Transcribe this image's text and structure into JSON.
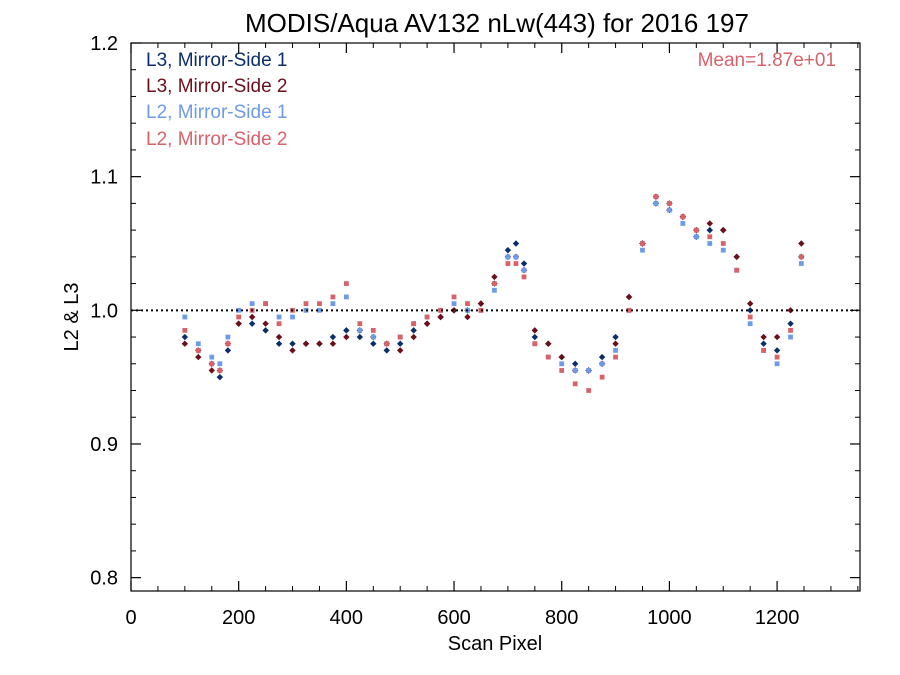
{
  "chart_data": {
    "type": "scatter",
    "title": "MODIS/Aqua AV132 nLw(443) for 2016 197",
    "xlabel": "Scan Pixel",
    "ylabel": "L2 & L3",
    "xlim": [
      0,
      1354
    ],
    "ylim": [
      0.79,
      1.2
    ],
    "x_ticks": [
      0,
      200,
      400,
      600,
      800,
      1000,
      1200
    ],
    "y_ticks": [
      0.8,
      0.9,
      1.0,
      1.1,
      1.2
    ],
    "x_tick_labels": [
      "0",
      "200",
      "400",
      "600",
      "800",
      "1000",
      "1200"
    ],
    "y_tick_labels": [
      "0.8",
      "0.9",
      "1.0",
      "1.1",
      "1.2"
    ],
    "reference_line": {
      "y": 1.0,
      "style": "dotted"
    },
    "annotation": "Mean=1.87e+01",
    "legend_placement": "top-left",
    "series": [
      {
        "name": "L3, Mirror-Side 1",
        "color": "#0b2e6b",
        "marker": "diamond",
        "x": [
          100,
          125,
          150,
          165,
          180,
          200,
          225,
          250,
          275,
          300,
          325,
          350,
          375,
          400,
          425,
          450,
          475,
          500,
          525,
          550,
          575,
          600,
          625,
          650,
          675,
          700,
          715,
          730,
          750,
          775,
          800,
          825,
          850,
          875,
          900,
          925,
          950,
          975,
          1000,
          1025,
          1050,
          1075,
          1100,
          1125,
          1150,
          1175,
          1200,
          1225,
          1245
        ],
        "y": [
          0.98,
          0.97,
          0.96,
          0.95,
          0.97,
          0.99,
          0.99,
          0.985,
          0.975,
          0.975,
          0.975,
          0.975,
          0.98,
          0.985,
          0.98,
          0.975,
          0.97,
          0.975,
          0.985,
          0.99,
          0.995,
          1.0,
          1.0,
          1.005,
          1.02,
          1.045,
          1.05,
          1.035,
          0.98,
          0.975,
          0.965,
          0.96,
          0.955,
          0.965,
          0.98,
          1.01,
          1.05,
          1.08,
          1.075,
          1.07,
          1.055,
          1.06,
          1.06,
          1.04,
          1.0,
          0.975,
          0.97,
          0.99,
          1.04
        ]
      },
      {
        "name": "L3, Mirror-Side 2",
        "color": "#6b0f1a",
        "marker": "diamond",
        "x": [
          100,
          125,
          150,
          165,
          180,
          200,
          225,
          250,
          275,
          300,
          325,
          350,
          375,
          400,
          425,
          450,
          475,
          500,
          525,
          550,
          575,
          600,
          625,
          650,
          675,
          700,
          715,
          730,
          750,
          775,
          800,
          825,
          850,
          875,
          900,
          925,
          950,
          975,
          1000,
          1025,
          1050,
          1075,
          1100,
          1125,
          1150,
          1175,
          1200,
          1225,
          1245
        ],
        "y": [
          0.975,
          0.965,
          0.955,
          0.955,
          0.975,
          0.99,
          0.995,
          0.99,
          0.98,
          0.97,
          0.975,
          0.975,
          0.975,
          0.98,
          0.985,
          0.98,
          0.975,
          0.97,
          0.98,
          0.99,
          0.995,
          1.0,
          0.995,
          1.005,
          1.025,
          1.04,
          1.04,
          1.03,
          0.985,
          0.975,
          0.965,
          0.955,
          0.955,
          0.96,
          0.975,
          1.01,
          1.05,
          1.085,
          1.08,
          1.07,
          1.06,
          1.065,
          1.06,
          1.04,
          1.005,
          0.98,
          0.98,
          1.0,
          1.05
        ]
      },
      {
        "name": "L2, Mirror-Side 1",
        "color": "#6e9be8",
        "marker": "square",
        "x": [
          100,
          125,
          150,
          165,
          180,
          200,
          225,
          250,
          275,
          300,
          325,
          350,
          375,
          400,
          425,
          450,
          475,
          500,
          525,
          550,
          575,
          600,
          625,
          650,
          675,
          700,
          715,
          730,
          750,
          775,
          800,
          825,
          850,
          875,
          900,
          925,
          950,
          975,
          1000,
          1025,
          1050,
          1075,
          1100,
          1125,
          1150,
          1175,
          1200,
          1225,
          1245
        ],
        "y": [
          0.995,
          0.975,
          0.965,
          0.96,
          0.98,
          1.0,
          1.005,
          1.005,
          0.995,
          0.995,
          1.0,
          1.0,
          1.005,
          1.01,
          0.985,
          0.98,
          0.975,
          0.98,
          0.99,
          0.995,
          1.0,
          1.005,
          1.0,
          1.0,
          1.015,
          1.04,
          1.04,
          1.03,
          0.975,
          0.965,
          0.96,
          0.955,
          0.955,
          0.96,
          0.97,
          1.0,
          1.045,
          1.08,
          1.075,
          1.065,
          1.055,
          1.05,
          1.045,
          1.03,
          0.99,
          0.97,
          0.96,
          0.98,
          1.035
        ]
      },
      {
        "name": "L2, Mirror-Side 2",
        "color": "#d9626a",
        "marker": "square",
        "x": [
          100,
          125,
          150,
          165,
          180,
          200,
          225,
          250,
          275,
          300,
          325,
          350,
          375,
          400,
          425,
          450,
          475,
          500,
          525,
          550,
          575,
          600,
          625,
          650,
          675,
          700,
          715,
          730,
          750,
          775,
          800,
          825,
          850,
          875,
          900,
          925,
          950,
          975,
          1000,
          1025,
          1050,
          1075,
          1100,
          1125,
          1150,
          1175,
          1200,
          1225,
          1245
        ],
        "y": [
          0.985,
          0.97,
          0.96,
          0.955,
          0.975,
          0.995,
          1.0,
          1.005,
          0.99,
          1.0,
          1.005,
          1.005,
          1.01,
          1.02,
          0.99,
          0.985,
          0.975,
          0.98,
          0.99,
          0.995,
          1.0,
          1.01,
          1.005,
          1.0,
          1.02,
          1.035,
          1.035,
          1.025,
          0.975,
          0.965,
          0.955,
          0.945,
          0.94,
          0.95,
          0.965,
          1.0,
          1.05,
          1.085,
          1.08,
          1.07,
          1.06,
          1.055,
          1.05,
          1.03,
          0.995,
          0.97,
          0.965,
          0.985,
          1.04
        ]
      }
    ]
  }
}
